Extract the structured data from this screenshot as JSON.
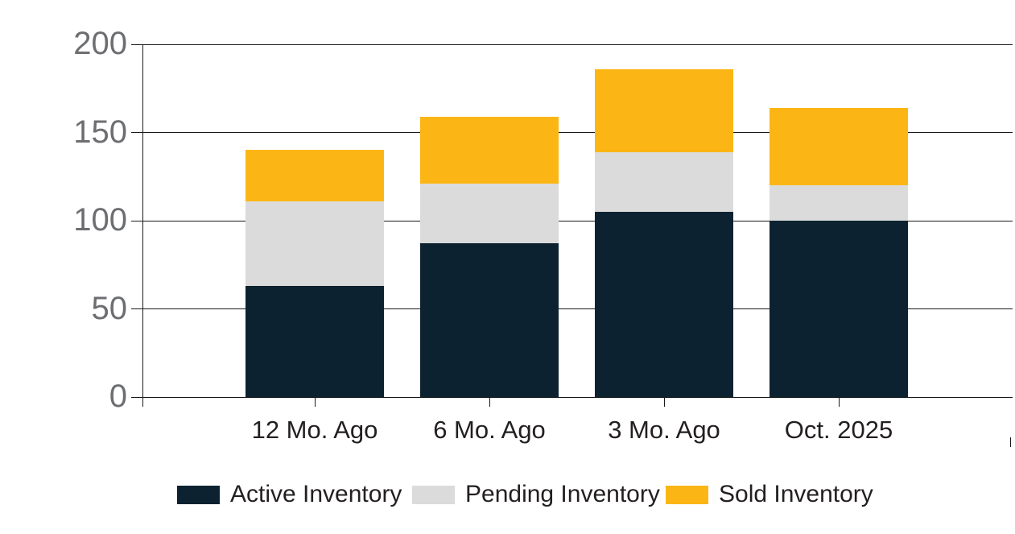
{
  "chart_data": {
    "type": "bar",
    "stacked": true,
    "title": "",
    "xlabel": "",
    "ylabel": "",
    "categories": [
      "12 Mo. Ago",
      "6 Mo. Ago",
      "3 Mo. Ago",
      "Oct. 2025"
    ],
    "series": [
      {
        "name": "Active Inventory",
        "color": "#0d2230",
        "values": [
          63,
          87,
          105,
          100
        ]
      },
      {
        "name": "Pending Inventory",
        "color": "#dbdbdb",
        "values": [
          48,
          34,
          34,
          20
        ]
      },
      {
        "name": "Sold Inventory",
        "color": "#fbb616",
        "values": [
          29,
          38,
          47,
          44
        ]
      }
    ],
    "stack_totals": [
      140,
      159,
      186,
      164
    ],
    "y_ticks": [
      0,
      50,
      100,
      150,
      200
    ],
    "ylim": [
      0,
      200
    ],
    "grid": true,
    "legend_position": "bottom"
  },
  "colors": {
    "background": "#ffffff",
    "gridline": "#1a1a1a",
    "y_tick_label": "#6d6e71",
    "x_tick_label": "#231f20",
    "legend_text": "#231f20"
  }
}
